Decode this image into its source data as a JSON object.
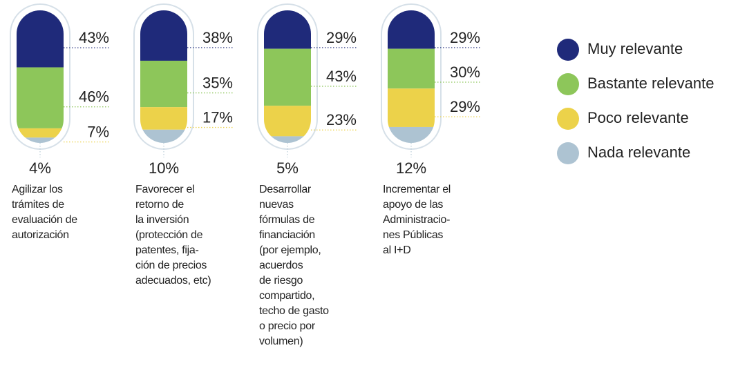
{
  "chart_data": {
    "type": "stacked-capsule",
    "categories": [
      "Agilizar los\ntrámites de\nevaluación de\nautorización",
      "Favorecer el\nretorno de\nla inversión\n(protección de\npatentes, fija-\nción de precios\nadecuados, etc)",
      "Desarrollar\nnuevas\nfórmulas de\nfinanciación\n(por ejemplo,\nacuerdos\nde riesgo\ncompartido,\ntecho de gasto\no precio por\nvolumen)",
      "Incrementar el\napoyo de las\nAdministracio-\nnes Públicas\nal I+D"
    ],
    "series": [
      {
        "name": "Muy relevante",
        "color": "#1f2a7a",
        "values": [
          43,
          38,
          29,
          29
        ],
        "value_labels": [
          "43%",
          "38%",
          "29%",
          "29%"
        ]
      },
      {
        "name": "Bastante relevante",
        "color": "#8dc65a",
        "values": [
          46,
          35,
          43,
          30
        ],
        "value_labels": [
          "46%",
          "35%",
          "43%",
          "30%"
        ]
      },
      {
        "name": "Poco relevante",
        "color": "#ecd24a",
        "values": [
          7,
          17,
          23,
          29
        ],
        "value_labels": [
          "7%",
          "17%",
          "23%",
          "29%"
        ]
      },
      {
        "name": "Nada relevante",
        "color": "#adc3d2",
        "values": [
          4,
          10,
          5,
          12
        ],
        "value_labels": [
          "4%",
          "10%",
          "5%",
          "12%"
        ]
      }
    ],
    "ylim": [
      0,
      100
    ],
    "legend": "right"
  }
}
